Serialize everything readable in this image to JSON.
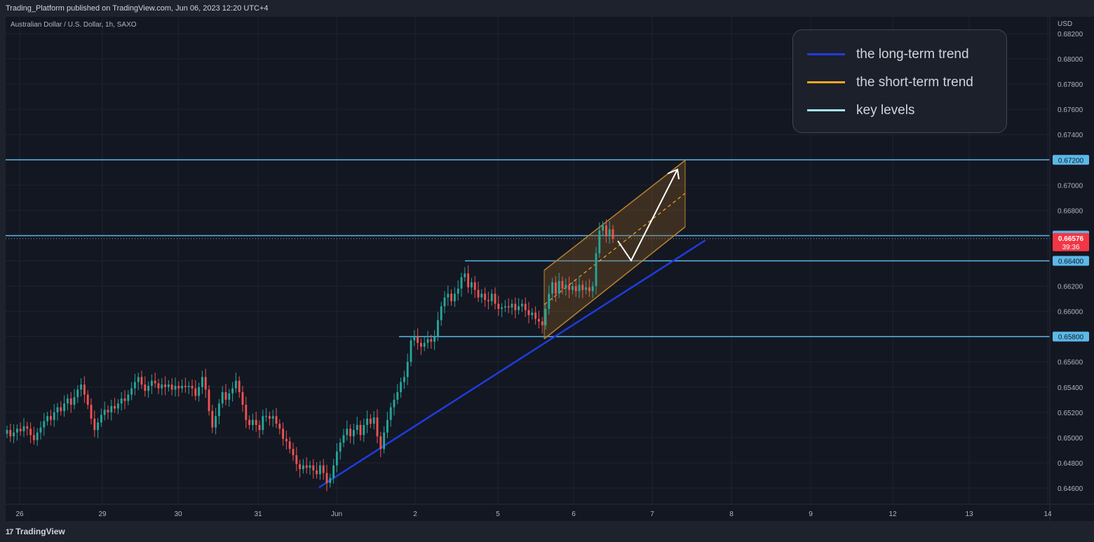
{
  "header": {
    "published_text": "Trading_Platform published on TradingView.com, Jun 06, 2023 12:20 UTC+4"
  },
  "symbol_text": "Australian Dollar / U.S. Dollar, 1h, SAXO",
  "footer": {
    "logo_mark": "17",
    "brand": "TradingView"
  },
  "legend": [
    {
      "label": "the long-term trend",
      "color": "#1e3ddf"
    },
    {
      "label": "the short-term trend",
      "color": "#f5a623"
    },
    {
      "label": "key levels",
      "color": "#a6e4f5"
    }
  ],
  "colors": {
    "background": "#131722",
    "grid": "#1f2330",
    "up_candle": "#26a69a",
    "down_candle": "#ef5350",
    "key_level": "#5cb8e6",
    "long_trend": "#1e3ddf",
    "channel_fill": "#8a5c22",
    "channel_edge": "#b9802f",
    "projection_arrow": "#ffffff",
    "price_badge": "#f23645"
  },
  "chart_data": {
    "type": "candlestick",
    "symbol": "Australian Dollar / U.S. Dollar",
    "timeframe": "1h",
    "exchange": "SAXO",
    "currency": "USD",
    "y_axis": {
      "label": "USD",
      "ylim": [
        0.6455,
        0.6825
      ],
      "ticks": [
        "0.68200",
        "0.68000",
        "0.67800",
        "0.67600",
        "0.67400",
        "0.67200",
        "0.67000",
        "0.66800",
        "0.66600",
        "0.66400",
        "0.66200",
        "0.66000",
        "0.65800",
        "0.65600",
        "0.65400",
        "0.65200",
        "0.65000",
        "0.64800",
        "0.64600"
      ]
    },
    "x_axis": {
      "ticks": [
        "26",
        "29",
        "30",
        "31",
        "Jun",
        "2",
        "5",
        "6",
        "7",
        "8",
        "9",
        "12",
        "13",
        "14"
      ]
    },
    "grid": true,
    "key_levels": [
      "0.67200",
      "0.66600",
      "0.66400",
      "0.65800"
    ],
    "current_price": {
      "value": "0.66576",
      "countdown": "39:36"
    },
    "close_path": [
      [
        0.6503,
        0.6506
      ],
      [
        0.6506,
        0.6501
      ],
      [
        0.6501,
        0.6504
      ],
      [
        0.6504,
        0.6507
      ],
      [
        0.6507,
        0.6505
      ],
      [
        0.6505,
        0.6509
      ],
      [
        0.6509,
        0.6507
      ],
      [
        0.6507,
        0.6502
      ],
      [
        0.6502,
        0.6498
      ],
      [
        0.6498,
        0.6504
      ],
      [
        0.6504,
        0.6508
      ],
      [
        0.6508,
        0.6513
      ],
      [
        0.6513,
        0.6517
      ],
      [
        0.6517,
        0.6514
      ],
      [
        0.6514,
        0.652
      ],
      [
        0.652,
        0.6524
      ],
      [
        0.6524,
        0.6521
      ],
      [
        0.6521,
        0.6527
      ],
      [
        0.6527,
        0.6531
      ],
      [
        0.6531,
        0.6526
      ],
      [
        0.6526,
        0.6532
      ],
      [
        0.6532,
        0.6538
      ],
      [
        0.6538,
        0.6542
      ],
      [
        0.6542,
        0.6534
      ],
      [
        0.6534,
        0.6526
      ],
      [
        0.6526,
        0.6515
      ],
      [
        0.6515,
        0.6506
      ],
      [
        0.6506,
        0.6512
      ],
      [
        0.6512,
        0.6518
      ],
      [
        0.6518,
        0.6522
      ],
      [
        0.6522,
        0.652
      ],
      [
        0.652,
        0.6525
      ],
      [
        0.6525,
        0.6523
      ],
      [
        0.6523,
        0.6527
      ],
      [
        0.6527,
        0.6531
      ],
      [
        0.6531,
        0.6529
      ],
      [
        0.6529,
        0.6534
      ],
      [
        0.6534,
        0.6539
      ],
      [
        0.6539,
        0.6544
      ],
      [
        0.6544,
        0.6548
      ],
      [
        0.6548,
        0.6542
      ],
      [
        0.6542,
        0.6537
      ],
      [
        0.6537,
        0.6541
      ],
      [
        0.6541,
        0.6545
      ],
      [
        0.6545,
        0.6543
      ],
      [
        0.6543,
        0.6539
      ],
      [
        0.6539,
        0.6542
      ],
      [
        0.6542,
        0.654
      ],
      [
        0.654,
        0.6542
      ],
      [
        0.6542,
        0.6538
      ],
      [
        0.6538,
        0.6541
      ],
      [
        0.6541,
        0.6539
      ],
      [
        0.6539,
        0.6541
      ],
      [
        0.6541,
        0.654
      ],
      [
        0.654,
        0.6541
      ],
      [
        0.6541,
        0.6539
      ],
      [
        0.6539,
        0.6533
      ],
      [
        0.6533,
        0.654
      ],
      [
        0.654,
        0.6548
      ],
      [
        0.6548,
        0.6538
      ],
      [
        0.6538,
        0.6521
      ],
      [
        0.6521,
        0.6508
      ],
      [
        0.6508,
        0.6517
      ],
      [
        0.6517,
        0.6527
      ],
      [
        0.6527,
        0.6536
      ],
      [
        0.6536,
        0.653
      ],
      [
        0.653,
        0.6535
      ],
      [
        0.6535,
        0.6539
      ],
      [
        0.6539,
        0.6545
      ],
      [
        0.6545,
        0.6536
      ],
      [
        0.6536,
        0.6526
      ],
      [
        0.6526,
        0.6514
      ],
      [
        0.6514,
        0.651
      ],
      [
        0.651,
        0.6514
      ],
      [
        0.6514,
        0.651
      ],
      [
        0.651,
        0.6506
      ],
      [
        0.6506,
        0.6517
      ],
      [
        0.6517,
        0.6517
      ],
      [
        0.6517,
        0.6515
      ],
      [
        0.6515,
        0.6517
      ],
      [
        0.6517,
        0.6511
      ],
      [
        0.6511,
        0.6507
      ],
      [
        0.6507,
        0.6499
      ],
      [
        0.6499,
        0.6497
      ],
      [
        0.6497,
        0.6491
      ],
      [
        0.6491,
        0.6486
      ],
      [
        0.6486,
        0.6479
      ],
      [
        0.6479,
        0.6475
      ],
      [
        0.6475,
        0.6478
      ],
      [
        0.6478,
        0.6476
      ],
      [
        0.6476,
        0.6478
      ],
      [
        0.6478,
        0.6474
      ],
      [
        0.6474,
        0.6471
      ],
      [
        0.6471,
        0.6478
      ],
      [
        0.6478,
        0.6472
      ],
      [
        0.6472,
        0.6464
      ],
      [
        0.6464,
        0.6468
      ],
      [
        0.6468,
        0.6478
      ],
      [
        0.6478,
        0.6489
      ],
      [
        0.6489,
        0.6496
      ],
      [
        0.6496,
        0.6502
      ],
      [
        0.6502,
        0.6507
      ],
      [
        0.6507,
        0.6501
      ],
      [
        0.6501,
        0.6506
      ],
      [
        0.6506,
        0.651
      ],
      [
        0.651,
        0.6502
      ],
      [
        0.6502,
        0.651
      ],
      [
        0.651,
        0.6515
      ],
      [
        0.6515,
        0.6511
      ],
      [
        0.6511,
        0.6516
      ],
      [
        0.6516,
        0.6501
      ],
      [
        0.6501,
        0.6491
      ],
      [
        0.6491,
        0.6504
      ],
      [
        0.6504,
        0.6514
      ],
      [
        0.6514,
        0.6524
      ],
      [
        0.6524,
        0.653
      ],
      [
        0.653,
        0.6536
      ],
      [
        0.6536,
        0.6544
      ],
      [
        0.6544,
        0.6548
      ],
      [
        0.6548,
        0.656
      ],
      [
        0.656,
        0.6577
      ],
      [
        0.6577,
        0.658
      ],
      [
        0.658,
        0.6575
      ],
      [
        0.6575,
        0.6572
      ],
      [
        0.6572,
        0.6575
      ],
      [
        0.6575,
        0.6578
      ],
      [
        0.6578,
        0.6576
      ],
      [
        0.6576,
        0.658
      ],
      [
        0.658,
        0.6593
      ],
      [
        0.6593,
        0.6604
      ],
      [
        0.6604,
        0.6611
      ],
      [
        0.6611,
        0.6614
      ],
      [
        0.6614,
        0.6608
      ],
      [
        0.6608,
        0.6614
      ],
      [
        0.6614,
        0.6618
      ],
      [
        0.6618,
        0.6627
      ],
      [
        0.6627,
        0.663
      ],
      [
        0.663,
        0.6619
      ],
      [
        0.6619,
        0.6623
      ],
      [
        0.6623,
        0.6617
      ],
      [
        0.6617,
        0.6611
      ],
      [
        0.6611,
        0.6614
      ],
      [
        0.6614,
        0.6609
      ],
      [
        0.6609,
        0.6608
      ],
      [
        0.6608,
        0.6614
      ],
      [
        0.6614,
        0.6606
      ],
      [
        0.6606,
        0.6602
      ],
      [
        0.6602,
        0.6603
      ],
      [
        0.6603,
        0.6604
      ],
      [
        0.6604,
        0.6603
      ],
      [
        0.6603,
        0.6606
      ],
      [
        0.6606,
        0.6601
      ],
      [
        0.6601,
        0.6604
      ],
      [
        0.6604,
        0.6606
      ],
      [
        0.6606,
        0.6601
      ],
      [
        0.6601,
        0.6597
      ],
      [
        0.6597,
        0.6599
      ],
      [
        0.6599,
        0.6594
      ],
      [
        0.6594,
        0.6592
      ],
      [
        0.6592,
        0.6589
      ],
      [
        0.6589,
        0.6602
      ],
      [
        0.6602,
        0.6614
      ],
      [
        0.6614,
        0.6623
      ],
      [
        0.6623,
        0.6614
      ],
      [
        0.6614,
        0.6624
      ],
      [
        0.6624,
        0.6618
      ],
      [
        0.6618,
        0.6621
      ],
      [
        0.6621,
        0.6617
      ],
      [
        0.6617,
        0.662
      ],
      [
        0.662,
        0.6616
      ],
      [
        0.6616,
        0.6621
      ],
      [
        0.6621,
        0.6617
      ],
      [
        0.6617,
        0.6619
      ],
      [
        0.6619,
        0.6616
      ],
      [
        0.6616,
        0.662
      ],
      [
        0.662,
        0.6646
      ],
      [
        0.6646,
        0.6664
      ],
      [
        0.6664,
        0.6668
      ],
      [
        0.6668,
        0.666
      ],
      [
        0.666,
        0.6665
      ],
      [
        0.6665,
        0.66576
      ]
    ]
  }
}
